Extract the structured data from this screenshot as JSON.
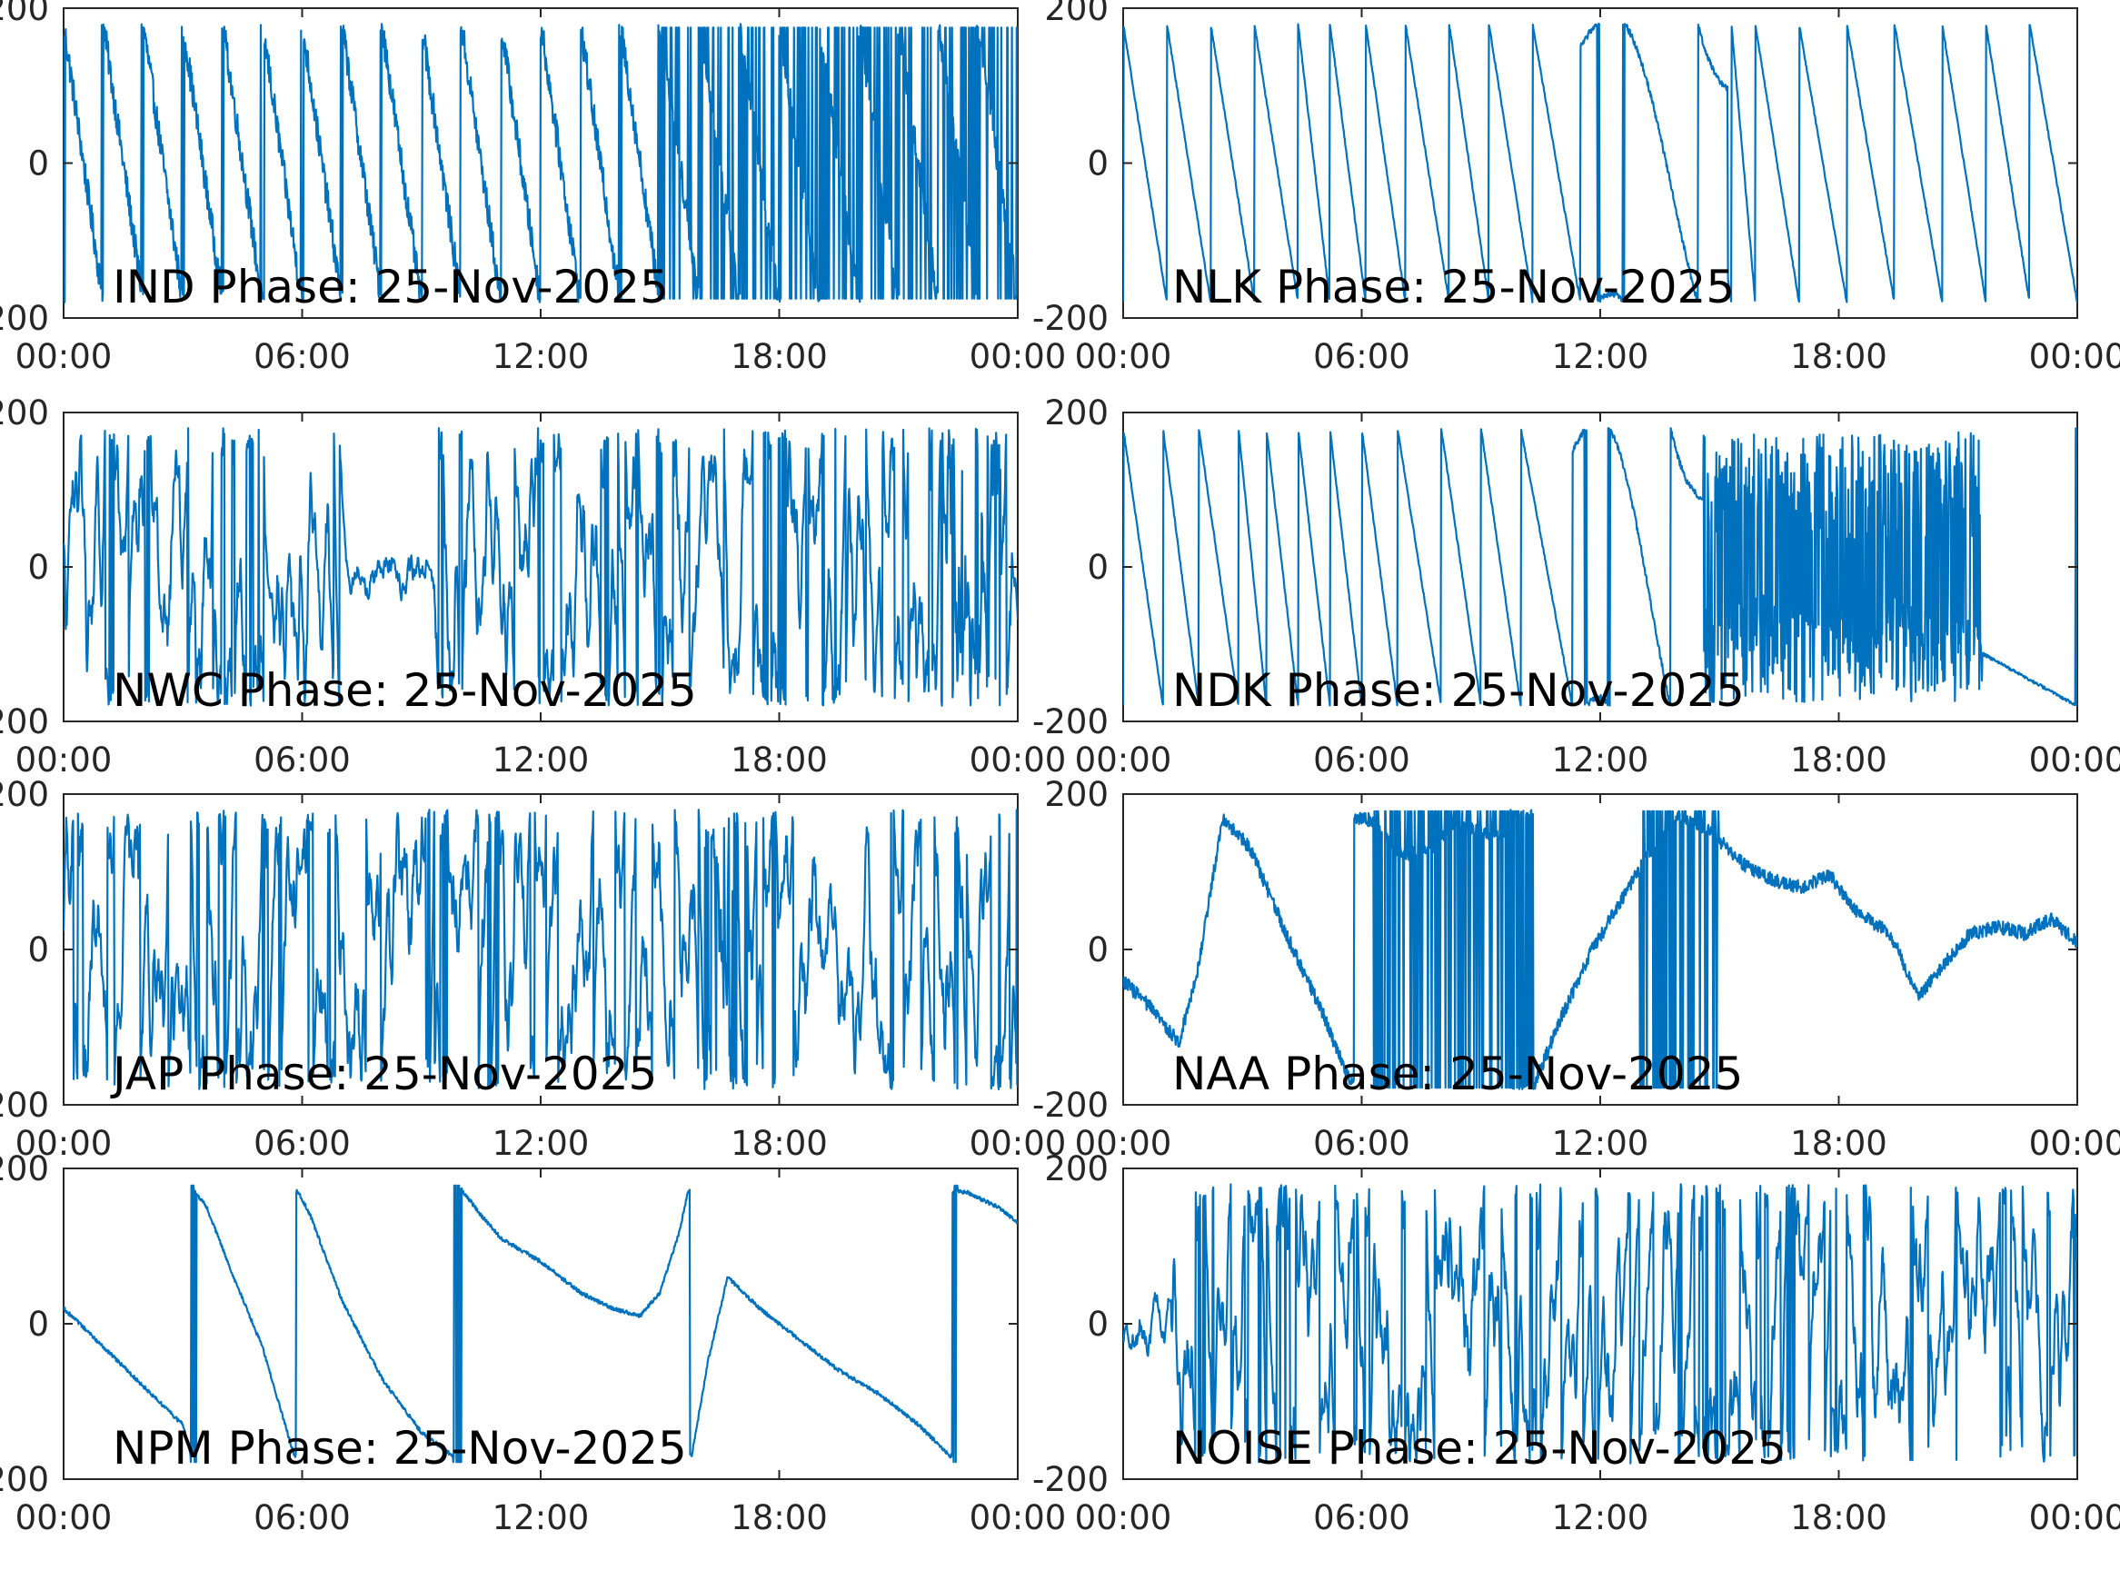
{
  "figure": {
    "line_color": "#0072BD",
    "axes_color": "#262626",
    "background": "#ffffff"
  },
  "chart_data": [
    {
      "type": "line",
      "title": "IND Phase: 25-Nov-2025",
      "xlabel": "",
      "ylabel": "",
      "xlim": [
        "00:00",
        "24:00"
      ],
      "xticks": [
        "00:00",
        "06:00",
        "12:00",
        "18:00",
        "00:00"
      ],
      "ylim": [
        -200,
        200
      ],
      "yticks": [
        -200,
        0,
        200
      ],
      "ytick_labels": [
        "-200",
        "0",
        "200"
      ],
      "grid": false,
      "series": [
        {
          "pattern": "sawtooth-descending-noisy",
          "wrap_range": [
            -180,
            180
          ],
          "cycles": 24,
          "noise": "moderate",
          "dense_segment_hours": [
            15.0,
            24.0
          ]
        }
      ]
    },
    {
      "type": "line",
      "title": "NLK Phase: 25-Nov-2025",
      "xlabel": "",
      "ylabel": "",
      "xlim": [
        "00:00",
        "24:00"
      ],
      "xticks": [
        "00:00",
        "06:00",
        "12:00",
        "18:00",
        "00:00"
      ],
      "ylim": [
        -200,
        200
      ],
      "yticks": [
        -200,
        0,
        200
      ],
      "ytick_labels": [
        "-200",
        "0",
        "200"
      ],
      "grid": false,
      "series": [
        {
          "pattern": "sawtooth-descending-clean",
          "wrap_range": [
            -180,
            180
          ],
          "wrap_hours": [
            0.0,
            1.1,
            2.2,
            3.3,
            4.4,
            5.2,
            6.1,
            7.1,
            8.2,
            9.2,
            10.3,
            11.5,
            14.3,
            15.3,
            15.9,
            17.0,
            18.2,
            19.4,
            20.6,
            21.7,
            22.8
          ],
          "anomaly_hours": [
            11.5,
            15.2
          ]
        }
      ]
    },
    {
      "type": "line",
      "title": "NWC Phase: 25-Nov-2025",
      "xlabel": "",
      "ylabel": "",
      "xlim": [
        "00:00",
        "24:00"
      ],
      "xticks": [
        "00:00",
        "06:00",
        "12:00",
        "18:00",
        "00:00"
      ],
      "ylim": [
        -200,
        200
      ],
      "yticks": [
        -200,
        0,
        200
      ],
      "ytick_labels": [
        "-200",
        "0",
        "200"
      ],
      "grid": false,
      "series": [
        {
          "pattern": "random-wrapping-noise",
          "wrap_range": [
            -180,
            180
          ],
          "quiet_segment_hours": [
            6.8,
            9.3
          ],
          "dense_segment_hours": [
            22.2,
            23.6
          ]
        }
      ]
    },
    {
      "type": "line",
      "title": "NDK Phase: 25-Nov-2025",
      "xlabel": "",
      "ylabel": "",
      "xlim": [
        "00:00",
        "24:00"
      ],
      "xticks": [
        "00:00",
        "06:00",
        "12:00",
        "18:00",
        "00:00"
      ],
      "ylim": [
        -200,
        200
      ],
      "yticks": [
        -200,
        0,
        200
      ],
      "ytick_labels": [
        "-200",
        "0",
        "200"
      ],
      "grid": false,
      "series": [
        {
          "pattern": "sawtooth-descending-clean",
          "wrap_range": [
            -180,
            180
          ],
          "wrap_hours": [
            0.0,
            1.0,
            1.9,
            2.9,
            3.6,
            4.4,
            5.2,
            6.0,
            6.9,
            8.0,
            9.0,
            10.0,
            11.3
          ],
          "anomaly_hours": [
            11.3,
            14.4
          ],
          "dense_segment_hours": [
            14.6,
            21.6
          ]
        }
      ]
    },
    {
      "type": "line",
      "title": "JAP Phase: 25-Nov-2025",
      "xlabel": "",
      "ylabel": "",
      "xlim": [
        "00:00",
        "24:00"
      ],
      "xticks": [
        "00:00",
        "06:00",
        "12:00",
        "18:00",
        "00:00"
      ],
      "ylim": [
        -200,
        200
      ],
      "yticks": [
        -200,
        0,
        200
      ],
      "ytick_labels": [
        "-200",
        "0",
        "200"
      ],
      "grid": false,
      "series": [
        {
          "pattern": "random-wrapping-noise",
          "wrap_range": [
            -180,
            180
          ],
          "dense_segment_hours": [
            16.1,
            17.0
          ]
        }
      ]
    },
    {
      "type": "line",
      "title": "NAA Phase: 25-Nov-2025",
      "xlabel": "",
      "ylabel": "",
      "xlim": [
        "00:00",
        "24:00"
      ],
      "xticks": [
        "00:00",
        "06:00",
        "12:00",
        "18:00",
        "00:00"
      ],
      "ylim": [
        -200,
        200
      ],
      "yticks": [
        -200,
        0,
        200
      ],
      "ytick_labels": [
        "-200",
        "0",
        "200"
      ],
      "grid": false,
      "series": [
        {
          "pattern": "drift-with-wraps",
          "wrap_range": [
            -180,
            180
          ],
          "x_hours": [
            0.0,
            0.6,
            1.4,
            1.9,
            2.5,
            3.2,
            4.1,
            5.0,
            5.7,
            5.9,
            6.3,
            7.0,
            7.8,
            8.3,
            9.1,
            10.3,
            11.0,
            11.8,
            12.5,
            13.3,
            14.0,
            14.8,
            15.6,
            16.3,
            17.0,
            17.8,
            18.4,
            19.3,
            20.0,
            20.8,
            21.3,
            22.0,
            22.7,
            23.3,
            24.0
          ],
          "y_deg": [
            -40,
            -70,
            -120,
            -20,
            170,
            130,
            20,
            -80,
            -170,
            170,
            165,
            120,
            130,
            160,
            150,
            -180,
            -90,
            0,
            60,
            130,
            170,
            150,
            110,
            90,
            80,
            95,
            50,
            20,
            -60,
            -10,
            20,
            30,
            20,
            40,
            10
          ],
          "dense_segment_hours": [
            6.3,
            10.0
          ],
          "dense_segment_hours_2": [
            13.0,
            15.0
          ]
        }
      ]
    },
    {
      "type": "line",
      "title": "NPM Phase: 25-Nov-2025",
      "xlabel": "",
      "ylabel": "",
      "xlim": [
        "00:00",
        "24:00"
      ],
      "xticks": [
        "00:00",
        "06:00",
        "12:00",
        "18:00",
        "00:00"
      ],
      "ylim": [
        -200,
        200
      ],
      "yticks": [
        -200,
        0,
        200
      ],
      "ytick_labels": [
        "-200",
        "0",
        "200"
      ],
      "grid": false,
      "series": [
        {
          "pattern": "slow-sawtooth",
          "wrap_range": [
            -180,
            180
          ],
          "x_hours": [
            0.0,
            1.0,
            2.0,
            3.0,
            3.2,
            3.3,
            3.6,
            4.2,
            5.0,
            5.8,
            5.9,
            6.2,
            7.0,
            8.0,
            9.0,
            9.8,
            9.9,
            10.5,
            11.0,
            12.0,
            13.0,
            13.8,
            14.5,
            15.0,
            15.5,
            15.7,
            15.8,
            16.2,
            16.7,
            17.5,
            18.5,
            19.5,
            20.5,
            21.5,
            22.3,
            22.4,
            22.7,
            23.5,
            24.0
          ],
          "y_deg": [
            20,
            -30,
            -80,
            -130,
            -170,
            170,
            150,
            70,
            -30,
            -170,
            170,
            140,
            30,
            -70,
            -140,
            -170,
            180,
            140,
            110,
            80,
            40,
            20,
            10,
            40,
            120,
            170,
            -170,
            -50,
            60,
            20,
            -20,
            -60,
            -90,
            -130,
            -170,
            170,
            170,
            150,
            130
          ],
          "dense_segment_hours": [
            3.2,
            3.4
          ],
          "dense_segment_hours_2": [
            9.8,
            10.0
          ],
          "dense_segment_hours_3": [
            22.3,
            22.5
          ]
        }
      ]
    },
    {
      "type": "line",
      "title": "NOISE Phase: 25-Nov-2025",
      "xlabel": "",
      "ylabel": "",
      "xlim": [
        "00:00",
        "24:00"
      ],
      "xticks": [
        "00:00",
        "06:00",
        "12:00",
        "18:00",
        "00:00"
      ],
      "ylim": [
        -200,
        200
      ],
      "yticks": [
        -200,
        0,
        200
      ],
      "ytick_labels": [
        "-200",
        "0",
        "200"
      ],
      "grid": false,
      "series": [
        {
          "pattern": "random-wrapping-noise",
          "wrap_range": [
            -180,
            180
          ],
          "quiet_segment_hours": [
            0.0,
            1.2
          ]
        }
      ]
    }
  ]
}
